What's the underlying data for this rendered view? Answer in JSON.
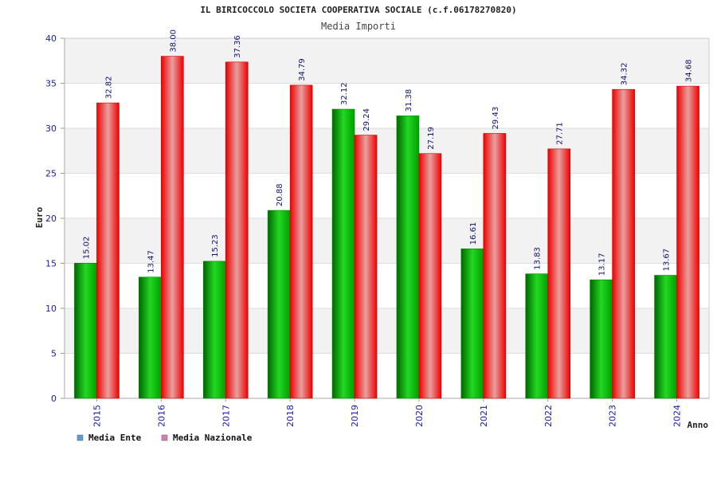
{
  "chart_data": {
    "type": "bar",
    "title": "IL BIRICOCCOLO SOCIETA COOPERATIVA SOCIALE (c.f.06178270820)",
    "subtitle": "Media Importi",
    "xlabel": "Anno",
    "ylabel": "Euro",
    "ylim": [
      0,
      40
    ],
    "yticks": [
      "0",
      "5",
      "10",
      "15",
      "20",
      "25",
      "30",
      "35",
      "40"
    ],
    "grid": true,
    "legend_position": "bottom-left",
    "categories": [
      "2015",
      "2016",
      "2017",
      "2018",
      "2019",
      "2020",
      "2021",
      "2022",
      "2023",
      "2024"
    ],
    "series": [
      {
        "name": "Media Ente",
        "values": [
          15.02,
          13.47,
          15.23,
          20.88,
          32.12,
          31.38,
          16.61,
          13.83,
          13.17,
          13.67
        ],
        "labels": [
          "15.02",
          "13.47",
          "15.23",
          "20.88",
          "32.12",
          "31.38",
          "16.61",
          "13.83",
          "13.17",
          "13.67"
        ],
        "color": "#00b400",
        "legend_color": "#5b9bd5"
      },
      {
        "name": "Media Nazionale",
        "values": [
          32.82,
          38.0,
          37.36,
          34.79,
          29.24,
          27.19,
          29.43,
          27.71,
          34.32,
          34.68
        ],
        "labels": [
          "32.82",
          "38.00",
          "37.36",
          "34.79",
          "29.24",
          "27.19",
          "29.43",
          "27.71",
          "34.32",
          "34.68"
        ],
        "color": "#ee1111",
        "legend_color": "#d87ab4"
      }
    ]
  }
}
